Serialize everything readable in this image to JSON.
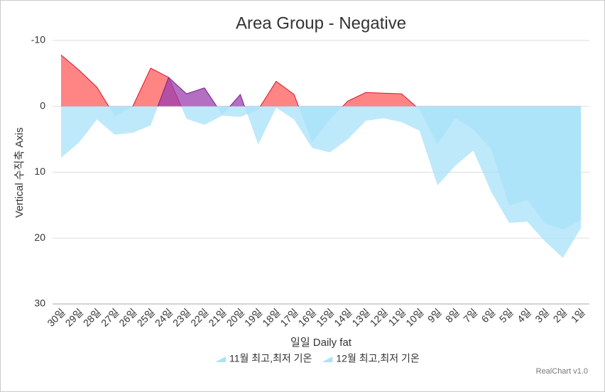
{
  "chart_data": {
    "type": "area",
    "title": "Area Group - Negative",
    "x_label": "일일 Daily fat",
    "y_label": "Vertical 수직축 Axis",
    "credit": "RealChart v1.0",
    "categories": [
      "30일",
      "29일",
      "28일",
      "27일",
      "26일",
      "25일",
      "24일",
      "23일",
      "22일",
      "21일",
      "20일",
      "19일",
      "18일",
      "17일",
      "16일",
      "15일",
      "14일",
      "13일",
      "12일",
      "11일",
      "10일",
      "9일",
      "8일",
      "7일",
      "6일",
      "5일",
      "4일",
      "3일",
      "2일",
      "1일"
    ],
    "series": [
      {
        "name": "11월 최고,최저 기온",
        "color": "#a8e2fa",
        "negative_color": "#ff5c5c",
        "line_color": "#e0102a",
        "values": [
          -7.8,
          -5.5,
          -2.9,
          1.5,
          0,
          -5.8,
          -4.4,
          1.9,
          2.8,
          1.4,
          1.6,
          0.5,
          -3.8,
          -1.8,
          5.5,
          2.0,
          -0.8,
          -2.1,
          -2.0,
          -1.9,
          0.5,
          5.8,
          1.8,
          3.5,
          6.5,
          15.1,
          14.2,
          17.8,
          18.7,
          17.3
        ]
      },
      {
        "name": "12월 최고,최저 기온",
        "color": "#a8e2fa",
        "negative_color": "#9b3fae",
        "line_color": "#7a1a8c",
        "values": [
          7.8,
          5.5,
          2.0,
          4.3,
          4.0,
          2.9,
          -4.4,
          -1.9,
          -2.8,
          1.3,
          -1.8,
          5.8,
          0.2,
          2.0,
          6.3,
          7.0,
          5.0,
          2.2,
          1.8,
          2.4,
          3.7,
          12.0,
          9.0,
          6.7,
          13.0,
          17.7,
          17.5,
          20.5,
          23.0,
          18.5
        ]
      }
    ],
    "ylim": [
      -10,
      30
    ],
    "yticks": [
      -10,
      0,
      10,
      20,
      30
    ],
    "y_reversed": true,
    "grid": true
  }
}
